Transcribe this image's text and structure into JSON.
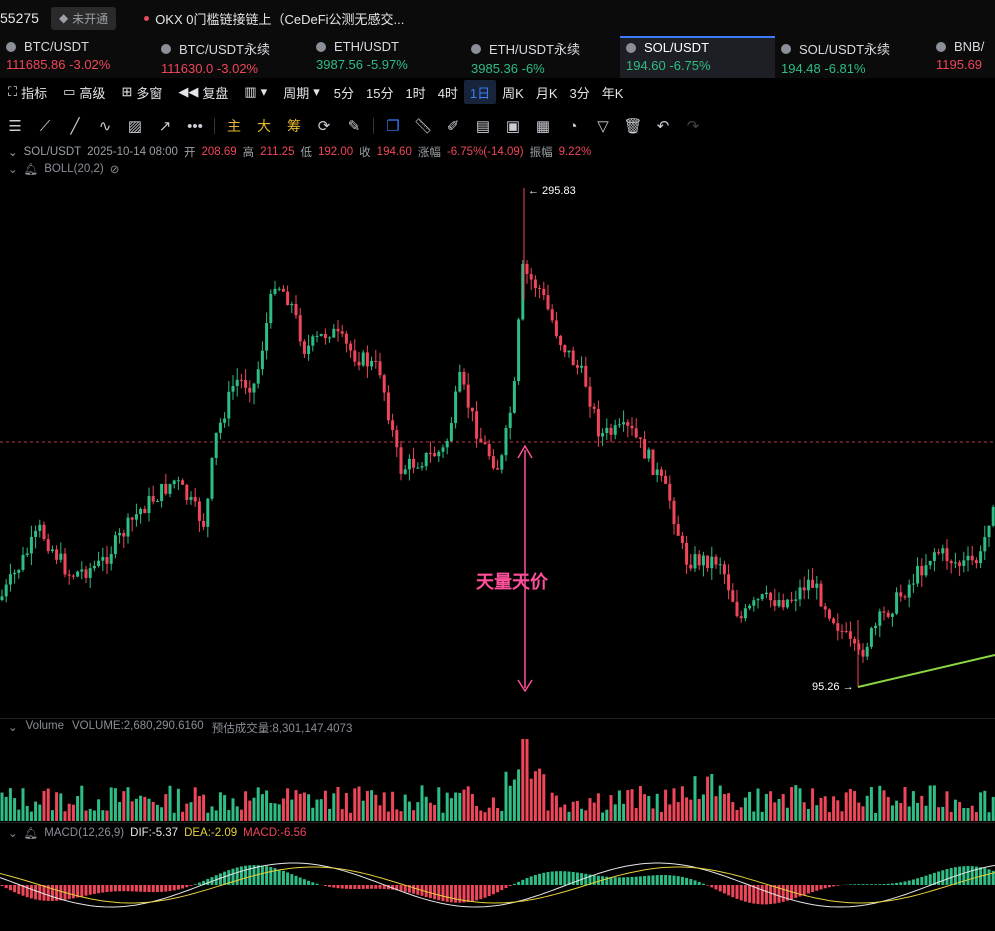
{
  "topbar": {
    "index_value": "55275",
    "badge": "未开通",
    "news": "OKX 0门槛链接链上（CeDeFi公测无感交..."
  },
  "tickers": [
    {
      "name": "BTC/USDT",
      "price": "111685.86",
      "change": "-3.02%",
      "dir": "down",
      "active": false
    },
    {
      "name": "BTC/USDT永续",
      "price": "111630.0",
      "change": "-3.02%",
      "dir": "down",
      "active": false
    },
    {
      "name": "ETH/USDT",
      "price": "3987.56",
      "change": "-5.97%",
      "dir": "up",
      "active": false
    },
    {
      "name": "ETH/USDT永续",
      "price": "3985.36",
      "change": "-6%",
      "dir": "up",
      "active": false
    },
    {
      "name": "SOL/USDT",
      "price": "194.60",
      "change": "-6.75%",
      "dir": "up",
      "active": true
    },
    {
      "name": "SOL/USDT永续",
      "price": "194.48",
      "change": "-6.81%",
      "dir": "up",
      "active": false
    },
    {
      "name": "BNB/",
      "price": "1195.69",
      "change": "",
      "dir": "down",
      "active": false
    }
  ],
  "toolbar": {
    "indicator": "指标",
    "advanced": "高级",
    "multi": "多窗",
    "replay": "复盘",
    "period": "周期",
    "intervals": [
      "5分",
      "15分",
      "1时",
      "4时",
      "1日",
      "周K",
      "月K",
      "3分",
      "年K"
    ],
    "active_interval": "1日"
  },
  "drawtools": {
    "cn_labels": [
      "主",
      "大",
      "筹"
    ]
  },
  "info": {
    "symbol": "SOL/USDT",
    "date": "2025-10-14 08:00",
    "open_label": "开",
    "open": "208.69",
    "high_label": "高",
    "high": "211.25",
    "low_label": "低",
    "low": "192.00",
    "close_label": "收",
    "close": "194.60",
    "change_label": "涨幅",
    "change": "-6.75%(-14.09)",
    "amp_label": "振幅",
    "amp": "9.22%"
  },
  "boll": "BOLL(20,2)",
  "annotations": {
    "high_label": "← 295.83",
    "low_label": "95.26 →",
    "callout": "天量天价"
  },
  "volume": {
    "label": "Volume",
    "volume_text": "VOLUME:2,680,290.6160",
    "forecast_text": "预估成交量:8,301,147.4073"
  },
  "macd": {
    "label": "MACD(12,26,9)",
    "dif": "DIF:-5.37",
    "dea": "DEA:-2.09",
    "macd": "MACD:-6.56"
  },
  "colors": {
    "up": "#2ebd85",
    "down": "#f0465a",
    "accent": "#3d7bfd",
    "callout": "#ff4f9a",
    "trendline": "#8bd641",
    "dea": "#e7d23a"
  },
  "chart_data": {
    "type": "candlestick",
    "symbol": "SOL/USDT",
    "interval": "1日",
    "price_high_marked": 295.83,
    "price_low_marked": 95.26,
    "last_close": 194.6
  }
}
